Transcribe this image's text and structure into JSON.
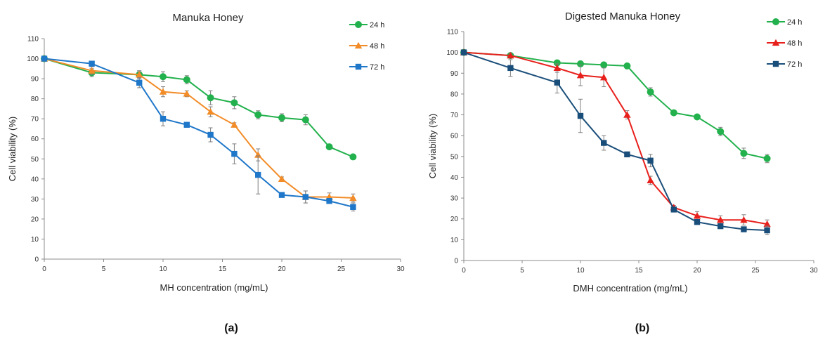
{
  "panels": {
    "a": "(a)",
    "b": "(b)"
  },
  "chart_data": [
    {
      "type": "line",
      "title": "Manuka Honey",
      "xlabel": "MH concentration (mg/mL)",
      "ylabel": "Cell viability (%)",
      "xlim": [
        0,
        30
      ],
      "ylim": [
        0,
        110
      ],
      "xticks": [
        0,
        5,
        10,
        15,
        20,
        25,
        30
      ],
      "yticks": [
        0,
        10,
        20,
        30,
        40,
        50,
        60,
        70,
        80,
        90,
        100,
        110
      ],
      "grid": false,
      "legend": "top-right",
      "series": [
        {
          "name": "24 h",
          "color": "#22b14c",
          "marker": "circle",
          "x": [
            0,
            4,
            8,
            10,
            12,
            14,
            16,
            18,
            20,
            22,
            24,
            26
          ],
          "y": [
            100,
            93,
            92,
            91,
            89.5,
            80.5,
            78,
            72,
            70.5,
            69.5,
            56,
            51
          ],
          "err": [
            0,
            2,
            2,
            2.5,
            2,
            3.5,
            3,
            2,
            2,
            2.5,
            1,
            1
          ]
        },
        {
          "name": "48 h",
          "color": "#f28c28",
          "marker": "triangle",
          "x": [
            0,
            4,
            8,
            10,
            12,
            14,
            16,
            18,
            20,
            22,
            24,
            26
          ],
          "y": [
            100,
            94,
            92,
            83.5,
            82.5,
            73.5,
            67,
            52,
            40,
            31,
            31,
            30.5
          ],
          "err": [
            0,
            2,
            1.5,
            2.5,
            1.5,
            2.5,
            1,
            3,
            1,
            3,
            2,
            2
          ]
        },
        {
          "name": "72 h",
          "color": "#1f77c9",
          "marker": "square",
          "x": [
            0,
            4,
            8,
            10,
            12,
            14,
            16,
            18,
            20,
            22,
            24,
            26
          ],
          "y": [
            100,
            97.5,
            88,
            70,
            67,
            62,
            52.5,
            42,
            32,
            31,
            29,
            26
          ],
          "err": [
            0,
            1,
            2.5,
            3.5,
            1,
            3.5,
            5,
            9.5,
            1,
            3,
            1,
            2
          ]
        }
      ]
    },
    {
      "type": "line",
      "title": "Digested Manuka Honey",
      "xlabel": "DMH concentration (mg/mL)",
      "ylabel": "Cell viability (%)",
      "xlim": [
        0,
        30
      ],
      "ylim": [
        0,
        110
      ],
      "xticks": [
        0,
        5,
        10,
        15,
        20,
        25,
        30
      ],
      "yticks": [
        0,
        10,
        20,
        30,
        40,
        50,
        60,
        70,
        80,
        90,
        100,
        110
      ],
      "grid": false,
      "legend": "top-right",
      "series": [
        {
          "name": "24 h",
          "color": "#22b14c",
          "marker": "circle",
          "x": [
            0,
            4,
            8,
            10,
            12,
            14,
            16,
            18,
            20,
            22,
            24,
            26
          ],
          "y": [
            100,
            98.5,
            95,
            94.5,
            94,
            93.5,
            81,
            71,
            69,
            62,
            51.5,
            49
          ],
          "err": [
            0,
            1,
            1,
            1,
            1,
            1,
            2,
            1,
            1,
            2,
            2.5,
            2
          ]
        },
        {
          "name": "48 h",
          "color": "#e8201c",
          "marker": "triangle",
          "x": [
            0,
            4,
            8,
            10,
            12,
            14,
            16,
            18,
            20,
            22,
            24,
            26
          ],
          "y": [
            100,
            98.5,
            92.5,
            89,
            88,
            70,
            38.5,
            25.5,
            21.5,
            19.5,
            19.5,
            17.5
          ],
          "err": [
            0,
            1,
            2,
            5,
            4.5,
            2,
            2,
            1,
            2,
            2,
            2.5,
            2
          ]
        },
        {
          "name": "72 h",
          "color": "#1a4e7a",
          "marker": "square",
          "x": [
            0,
            4,
            8,
            10,
            12,
            14,
            16,
            18,
            20,
            22,
            24,
            26
          ],
          "y": [
            100,
            92.5,
            85.5,
            69.5,
            56.5,
            51,
            48,
            24.5,
            18.5,
            16.5,
            15,
            14.5
          ],
          "err": [
            0,
            4,
            5,
            8,
            3.5,
            1,
            3,
            1,
            1,
            1,
            1,
            2
          ]
        }
      ]
    }
  ]
}
